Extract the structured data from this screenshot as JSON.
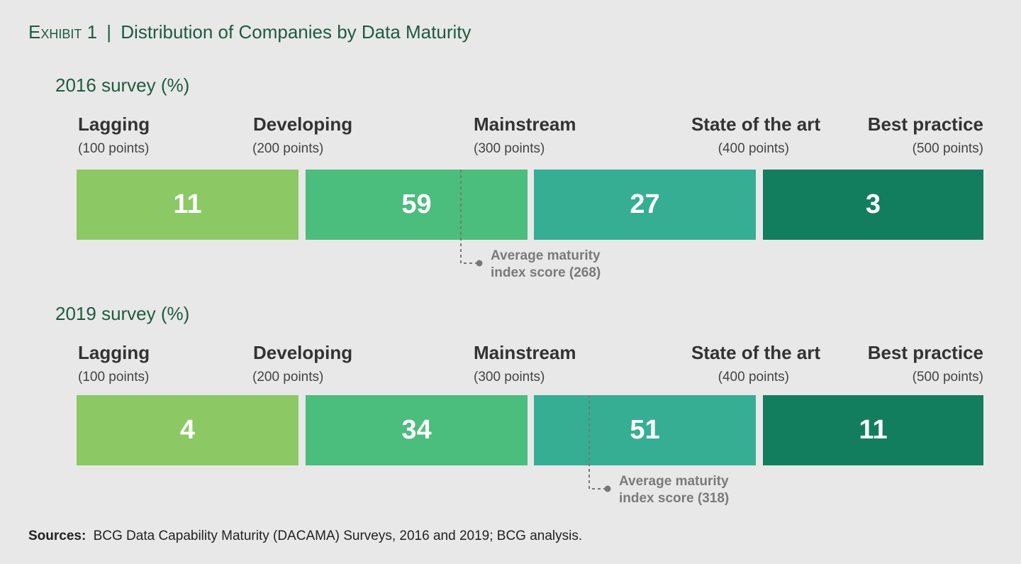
{
  "header": {
    "prefix": "Exhibit 1",
    "separator": "|",
    "title": "Distribution of Companies by Data Maturity"
  },
  "colors": [
    "#8cc864",
    "#4bbd7c",
    "#36ae94",
    "#137e5d"
  ],
  "panels": [
    {
      "title": "2016 survey (%)",
      "levels": [
        {
          "name": "Lagging",
          "points": "(100 points)",
          "value": 11
        },
        {
          "name": "Developing",
          "points": "(200 points)",
          "value": 59
        },
        {
          "name": "Mainstream",
          "points": "(300 points)",
          "value": 27
        },
        {
          "name": "State of the art",
          "points": "(400 points)",
          "value": 3
        },
        {
          "name": "Best practice",
          "points": "(500 points)"
        }
      ],
      "annotation": [
        "Average maturity",
        "index score (268)"
      ]
    },
    {
      "title": "2019 survey (%)",
      "levels": [
        {
          "name": "Lagging",
          "points": "(100 points)",
          "value": 4
        },
        {
          "name": "Developing",
          "points": "(200 points)",
          "value": 34
        },
        {
          "name": "Mainstream",
          "points": "(300 points)",
          "value": 51
        },
        {
          "name": "State of the art",
          "points": "(400 points)",
          "value": 11
        },
        {
          "name": "Best practice",
          "points": "(500 points)"
        }
      ],
      "annotation": [
        "Average maturity",
        "index score (318)"
      ]
    }
  ],
  "source": {
    "label": "Sources:",
    "text": "BCG Data Capability Maturity (DACAMA) Surveys, 2016 and 2019; BCG analysis."
  }
}
